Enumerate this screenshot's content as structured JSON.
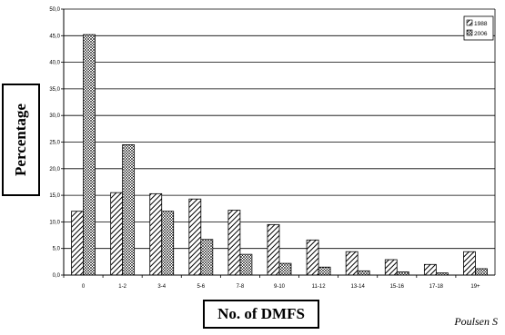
{
  "chart_data": {
    "type": "bar",
    "title": "",
    "xlabel": "No. of DMFS",
    "ylabel": "Percentage",
    "categories": [
      "0",
      "1-2",
      "3-4",
      "5-6",
      "7-8",
      "9-10",
      "11-12",
      "13-14",
      "15-16",
      "17-18",
      "19+"
    ],
    "series": [
      {
        "name": "1988",
        "pattern": "diagonal-hatch",
        "values": [
          12.0,
          15.5,
          15.3,
          14.3,
          12.2,
          9.5,
          6.6,
          4.4,
          2.9,
          2.0,
          4.4
        ]
      },
      {
        "name": "2006",
        "pattern": "dots",
        "values": [
          45.2,
          24.5,
          12.0,
          6.7,
          3.9,
          2.2,
          1.5,
          0.8,
          0.6,
          0.4,
          1.2
        ]
      }
    ],
    "ylim": [
      0,
      50
    ],
    "yticks": [
      "0,0",
      "5,0",
      "10,0",
      "15,0",
      "20,0",
      "25,0",
      "30,0",
      "35,0",
      "40,0",
      "45,0",
      "50,0"
    ],
    "grid": true,
    "legend_position": "top-right"
  },
  "credit": "Poulsen S"
}
